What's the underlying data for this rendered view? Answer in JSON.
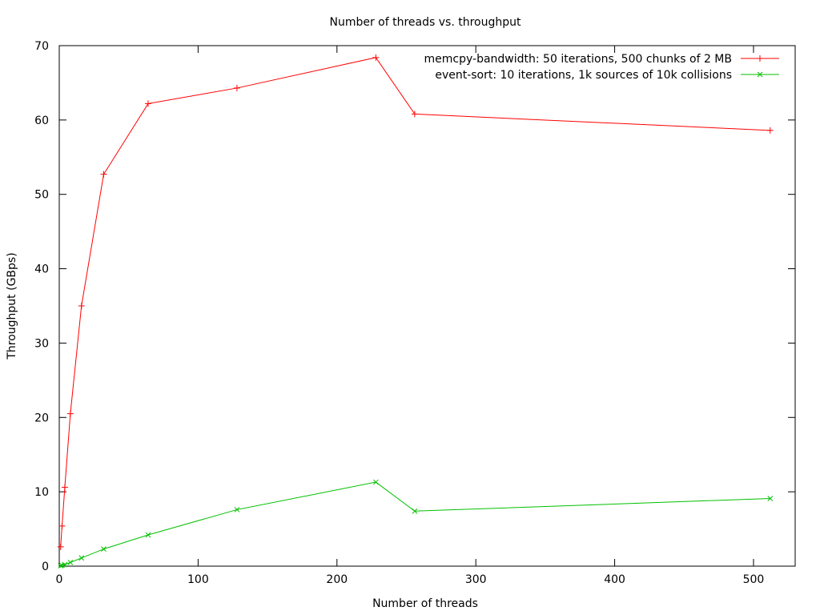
{
  "chart_data": {
    "type": "line",
    "title": "Number of threads vs. throughput",
    "xlabel": "Number of threads",
    "ylabel": "Throughput (GBps)",
    "xlim": [
      0,
      530
    ],
    "ylim": [
      0,
      70
    ],
    "xticks": [
      0,
      100,
      200,
      300,
      400,
      500
    ],
    "yticks": [
      0,
      10,
      20,
      30,
      40,
      50,
      60,
      70
    ],
    "grid": false,
    "legend_position": "top-right",
    "series": [
      {
        "name": "memcpy-bandwidth: 50 iterations, 500 chunks of 2 MB",
        "color": "#ff0000",
        "marker": "plus",
        "x": [
          1,
          2,
          4,
          8,
          16,
          32,
          64,
          128,
          228,
          256,
          512
        ],
        "y": [
          2.6,
          5.4,
          10.6,
          20.5,
          35.0,
          52.7,
          62.2,
          64.3,
          68.4,
          60.8,
          58.6
        ]
      },
      {
        "name": "event-sort: 10 iterations, 1k sources of 10k collisions",
        "color": "#00c000",
        "marker": "cross",
        "x": [
          1,
          2,
          4,
          8,
          16,
          32,
          64,
          128,
          228,
          256,
          512
        ],
        "y": [
          0.05,
          0.1,
          0.2,
          0.5,
          1.1,
          2.3,
          4.2,
          7.6,
          11.3,
          7.4,
          9.1
        ]
      }
    ]
  }
}
